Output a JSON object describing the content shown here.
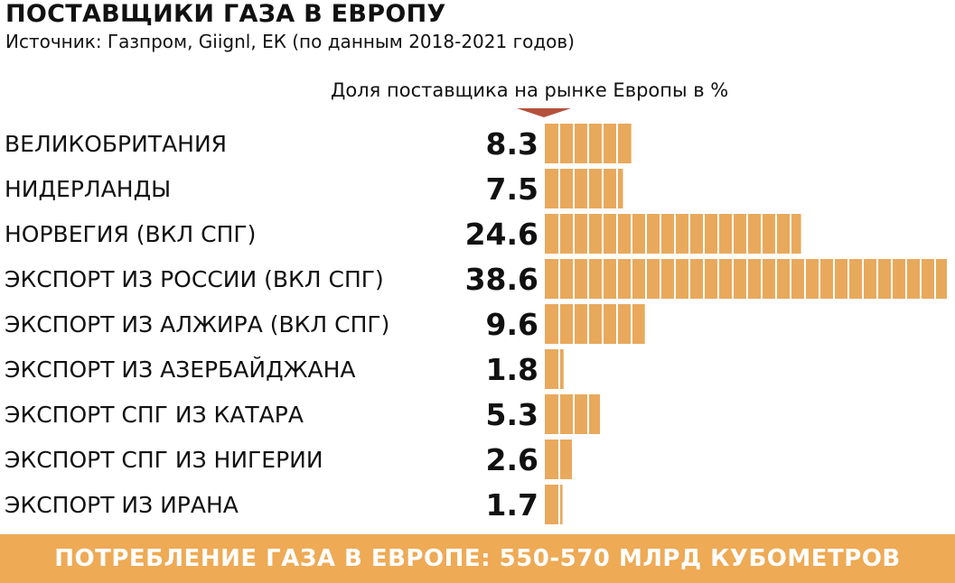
{
  "colors": {
    "bar": "#e8a95c",
    "footer": "#eeaa55",
    "marker": "#b5503c",
    "text": "#111111"
  },
  "header": {
    "title": "ПОСТАВЩИКИ ГАЗА В ЕВРОПУ",
    "subtitle": "Источник: Газпром, Giignl, ЕК (по данным 2018-2021 годов)"
  },
  "chart_data": {
    "type": "bar",
    "orientation": "horizontal",
    "value_caption": "Доля поставщика на рынке Европы в %",
    "categories": [
      "ВЕЛИКОБРИТАНИЯ",
      "НИДЕРЛАНДЫ",
      "НОРВЕГИЯ (ВКЛ СПГ)",
      "ЭКСПОРТ ИЗ РОССИИ (ВКЛ СПГ)",
      "ЭКСПОРТ ИЗ АЛЖИРА (ВКЛ СПГ)",
      "ЭКСПОРТ ИЗ АЗЕРБАЙДЖАНА",
      "ЭКСПОРТ СПГ ИЗ КАТАРА",
      "ЭКСПОРТ СПГ ИЗ НИГЕРИИ",
      "ЭКСПОРТ ИЗ ИРАНА"
    ],
    "values": [
      8.3,
      7.5,
      24.6,
      38.6,
      9.6,
      1.8,
      5.3,
      2.6,
      1.7
    ],
    "value_labels": [
      "8.3",
      "7.5",
      "24.6",
      "38.6",
      "9.6",
      "1.8",
      "5.3",
      "2.6",
      "1.7"
    ],
    "xlim": [
      0,
      38.6
    ],
    "grid": false,
    "legend": "none"
  },
  "footer": {
    "text": "ПОТРЕБЛЕНИЕ ГАЗА В ЕВРОПЕ: 550-570 МЛРД КУБОМЕТРОВ"
  }
}
